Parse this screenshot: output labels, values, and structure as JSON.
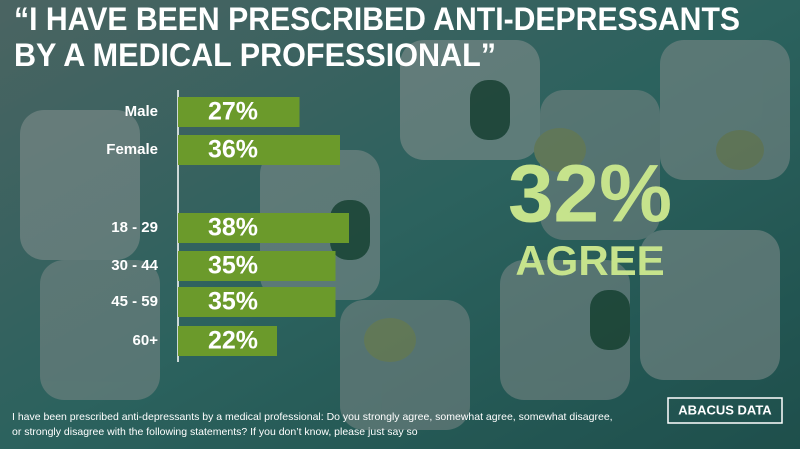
{
  "chart_data": {
    "type": "bar",
    "title": [
      "“I HAVE BEEN PRESCRIBED ANTI-DEPRESSANTS",
      "BY A MEDICAL PROFESSIONAL”"
    ],
    "categories": [
      "Male",
      "Female",
      "18 - 29",
      "30 - 44",
      "45 - 59",
      "60+"
    ],
    "values": [
      27,
      36,
      38,
      35,
      35,
      22
    ],
    "value_labels": [
      "27%",
      "36%",
      "38%",
      "35%",
      "35%",
      "22%"
    ],
    "color": "#6b9a2b",
    "highlight": {
      "value": "32%",
      "label": "AGREE"
    },
    "footnote": [
      "I have been prescribed anti-depressants by a medical professional: Do you strongly agree, somewhat agree, somewhat disagree,",
      "or strongly disagree with the following statements? If you don’t know, please just say so"
    ],
    "logo": "ABACUS DATA"
  }
}
